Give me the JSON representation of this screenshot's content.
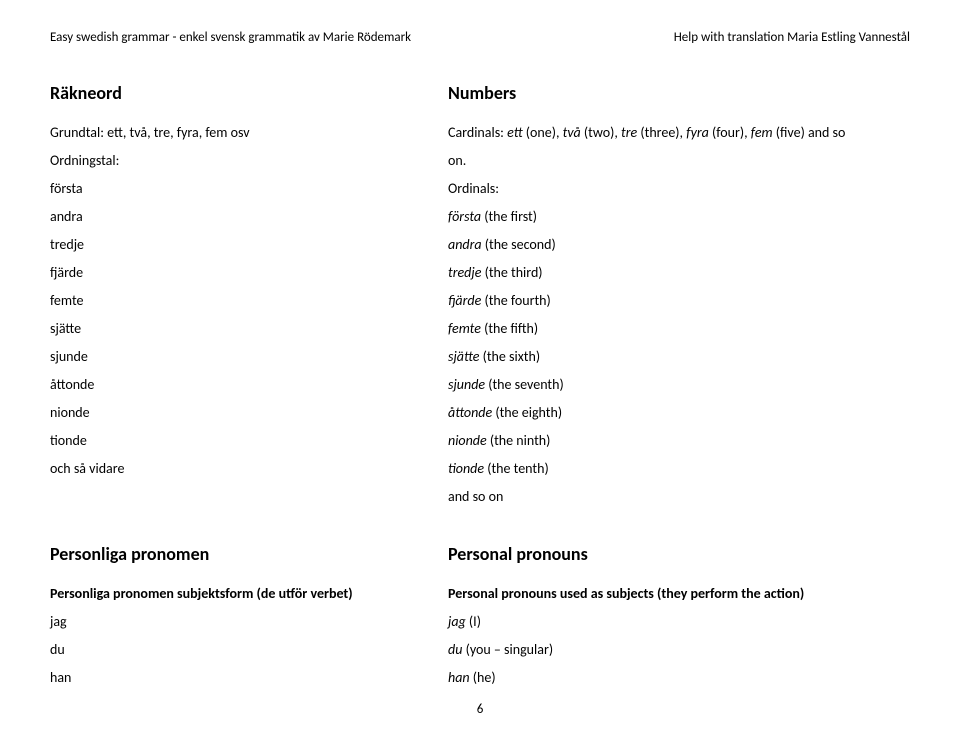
{
  "header": {
    "left": "Easy swedish grammar - enkel svensk grammatik av Marie Rödemark",
    "right": "Help with translation Maria Estling Vannestål"
  },
  "section1": {
    "left": {
      "heading": "Räkneord",
      "cardinal_intro": "Grundtal: ett, två, tre, fyra, fem osv",
      "ordinal_label": "Ordningstal:",
      "ordinals": [
        "första",
        "andra",
        "tredje",
        "fjärde",
        "femte",
        "sjätte",
        "sjunde",
        "åttonde",
        "nionde",
        "tionde",
        "och så vidare"
      ]
    },
    "right": {
      "heading": "Numbers",
      "cardinal_intro_1": "Cardinals: ",
      "cardinal_intro_2_italic": "ett",
      "cardinal_intro_3": " (one), ",
      "cardinal_intro_4_italic": "två",
      "cardinal_intro_5": " (two), ",
      "cardinal_intro_6_italic": "tre",
      "cardinal_intro_7": " (three), ",
      "cardinal_intro_8_italic": "fyra",
      "cardinal_intro_9": " (four), ",
      "cardinal_intro_10_italic": "fem",
      "cardinal_intro_11": " (five) and so",
      "cardinal_intro_line2": "on.",
      "ordinal_label": "Ordinals:",
      "ordinals": [
        {
          "it": "första",
          "en": " (the first)"
        },
        {
          "it": "andra",
          "en": " (the second)"
        },
        {
          "it": "tredje",
          "en": " (the third)"
        },
        {
          "it": "fjärde",
          "en": " (the fourth)"
        },
        {
          "it": "femte",
          "en": " (the fifth)"
        },
        {
          "it": "sjätte",
          "en": " (the sixth)"
        },
        {
          "it": "sjunde",
          "en": " (the seventh)"
        },
        {
          "it": "åttonde",
          "en": " (the eighth)"
        },
        {
          "it": "nionde",
          "en": " (the ninth)"
        },
        {
          "it": "tionde",
          "en": " (the tenth)"
        }
      ],
      "and_so_on": "and so on"
    }
  },
  "section2": {
    "left": {
      "heading": "Personliga pronomen",
      "sub": "Personliga pronomen subjektsform (de utför verbet)",
      "items": [
        "jag",
        "du",
        "han"
      ]
    },
    "right": {
      "heading": "Personal pronouns",
      "sub": "Personal pronouns used as subjects (they perform the action)",
      "items": [
        {
          "it": "jag",
          "en": " (I)"
        },
        {
          "it": "du",
          "en": " (you – singular)"
        },
        {
          "it": "han",
          "en": " (he)"
        }
      ]
    }
  },
  "page_number": "6"
}
